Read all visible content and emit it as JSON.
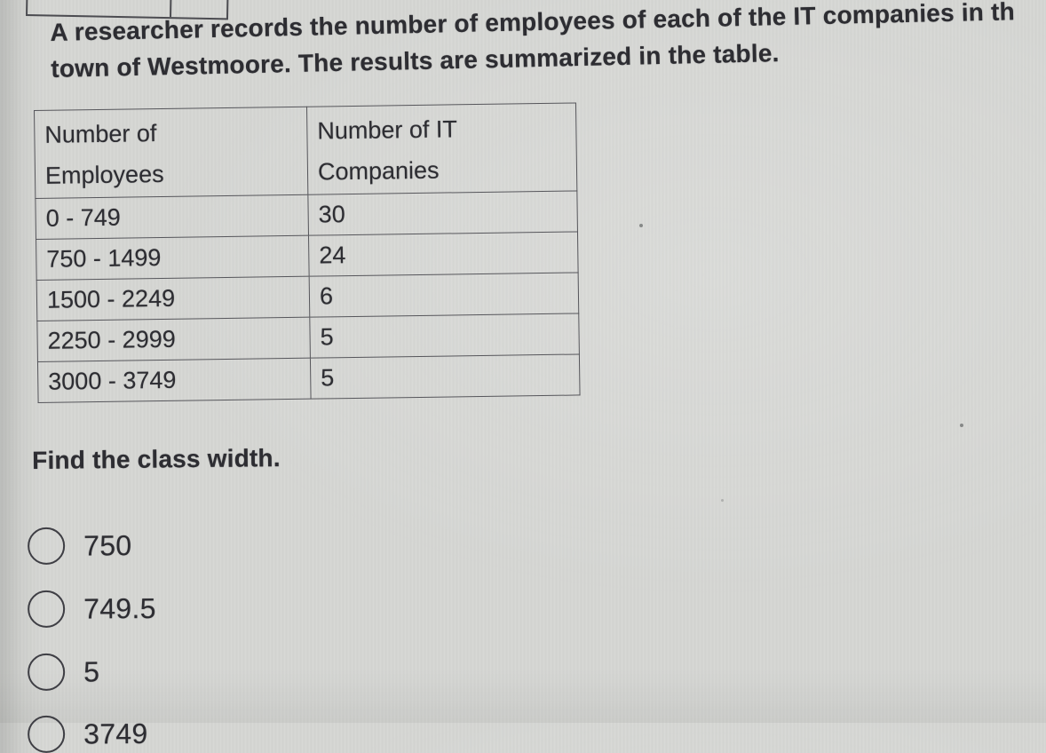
{
  "colors": {
    "page_background": "#d5d6d3",
    "text": "#2d2d32",
    "table_border": "#56565b"
  },
  "question": {
    "prompt_line1": "A researcher records the number of employees of each of the IT companies in th",
    "prompt_line2": "town of Westmoore. The results are summarized in the table.",
    "instruction": "Find the class width."
  },
  "table": {
    "headers": [
      "Number of\nEmployees",
      "Number of IT\nCompanies"
    ],
    "rows": [
      {
        "range": "0 - 749",
        "count": "30"
      },
      {
        "range": "750 - 1499",
        "count": "24"
      },
      {
        "range": "1500 - 2249",
        "count": "6"
      },
      {
        "range": "2250 - 2999",
        "count": "5"
      },
      {
        "range": "3000 - 3749",
        "count": "5"
      }
    ]
  },
  "options": [
    {
      "label": "750"
    },
    {
      "label": "749.5"
    },
    {
      "label": "5"
    },
    {
      "label": "3749"
    }
  ]
}
